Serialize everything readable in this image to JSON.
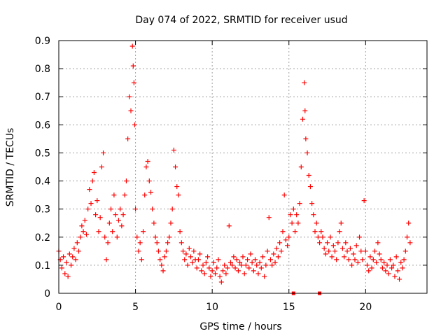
{
  "chart_data": {
    "type": "scatter",
    "title": "Day 074 of 2022, SRMTID for receiver usud",
    "xlabel": "GPS time / hours",
    "ylabel": "SRMTID / TECUs",
    "xlim": [
      0,
      24
    ],
    "ylim": [
      0,
      0.9
    ],
    "x_ticks": [
      0,
      5,
      10,
      15,
      20
    ],
    "x_tick_labels": [
      "0",
      "5",
      "10",
      "15",
      "20"
    ],
    "y_ticks": [
      0,
      0.1,
      0.2,
      0.3,
      0.4,
      0.5,
      0.6,
      0.7,
      0.8,
      0.9
    ],
    "y_tick_labels": [
      "0",
      "0.1",
      "0.2",
      "0.3",
      "0.4",
      "0.5",
      "0.6",
      "0.7",
      "0.8",
      "0.9"
    ],
    "grid": true,
    "marker": "+",
    "color": "#ff0000",
    "series": [
      {
        "name": "SRMTID",
        "points": [
          [
            0.0,
            0.15
          ],
          [
            0.1,
            0.12
          ],
          [
            0.2,
            0.09
          ],
          [
            0.3,
            0.13
          ],
          [
            0.4,
            0.07
          ],
          [
            0.5,
            0.11
          ],
          [
            0.6,
            0.06
          ],
          [
            0.7,
            0.14
          ],
          [
            0.8,
            0.1
          ],
          [
            0.9,
            0.13
          ],
          [
            1.0,
            0.16
          ],
          [
            1.1,
            0.12
          ],
          [
            1.2,
            0.18
          ],
          [
            1.3,
            0.15
          ],
          [
            1.4,
            0.2
          ],
          [
            1.5,
            0.24
          ],
          [
            1.6,
            0.22
          ],
          [
            1.7,
            0.26
          ],
          [
            1.8,
            0.21
          ],
          [
            1.9,
            0.3
          ],
          [
            2.0,
            0.37
          ],
          [
            2.1,
            0.32
          ],
          [
            2.2,
            0.4
          ],
          [
            2.3,
            0.43
          ],
          [
            2.4,
            0.28
          ],
          [
            2.5,
            0.33
          ],
          [
            2.6,
            0.22
          ],
          [
            2.7,
            0.27
          ],
          [
            2.8,
            0.45
          ],
          [
            2.9,
            0.5
          ],
          [
            3.0,
            0.2
          ],
          [
            3.1,
            0.12
          ],
          [
            3.2,
            0.18
          ],
          [
            3.3,
            0.25
          ],
          [
            3.4,
            0.3
          ],
          [
            3.5,
            0.22
          ],
          [
            3.6,
            0.35
          ],
          [
            3.7,
            0.28
          ],
          [
            3.8,
            0.2
          ],
          [
            3.9,
            0.26
          ],
          [
            4.0,
            0.3
          ],
          [
            4.1,
            0.24
          ],
          [
            4.2,
            0.28
          ],
          [
            4.3,
            0.35
          ],
          [
            4.4,
            0.4
          ],
          [
            4.5,
            0.55
          ],
          [
            4.6,
            0.7
          ],
          [
            4.7,
            0.65
          ],
          [
            4.8,
            0.88
          ],
          [
            4.85,
            0.81
          ],
          [
            4.9,
            0.75
          ],
          [
            4.95,
            0.6
          ],
          [
            5.0,
            0.3
          ],
          [
            5.1,
            0.2
          ],
          [
            5.2,
            0.15
          ],
          [
            5.3,
            0.18
          ],
          [
            5.4,
            0.12
          ],
          [
            5.5,
            0.22
          ],
          [
            5.6,
            0.35
          ],
          [
            5.7,
            0.45
          ],
          [
            5.8,
            0.47
          ],
          [
            5.9,
            0.4
          ],
          [
            6.0,
            0.36
          ],
          [
            6.1,
            0.3
          ],
          [
            6.2,
            0.25
          ],
          [
            6.3,
            0.2
          ],
          [
            6.4,
            0.18
          ],
          [
            6.5,
            0.15
          ],
          [
            6.6,
            0.12
          ],
          [
            6.7,
            0.1
          ],
          [
            6.8,
            0.08
          ],
          [
            6.9,
            0.13
          ],
          [
            7.0,
            0.15
          ],
          [
            7.1,
            0.18
          ],
          [
            7.2,
            0.2
          ],
          [
            7.3,
            0.25
          ],
          [
            7.4,
            0.3
          ],
          [
            7.5,
            0.51
          ],
          [
            7.6,
            0.45
          ],
          [
            7.7,
            0.38
          ],
          [
            7.8,
            0.35
          ],
          [
            7.9,
            0.22
          ],
          [
            8.0,
            0.18
          ],
          [
            8.1,
            0.15
          ],
          [
            8.2,
            0.12
          ],
          [
            8.3,
            0.14
          ],
          [
            8.4,
            0.1
          ],
          [
            8.5,
            0.16
          ],
          [
            8.6,
            0.13
          ],
          [
            8.7,
            0.11
          ],
          [
            8.8,
            0.15
          ],
          [
            8.9,
            0.12
          ],
          [
            9.0,
            0.09
          ],
          [
            9.1,
            0.12
          ],
          [
            9.2,
            0.14
          ],
          [
            9.3,
            0.08
          ],
          [
            9.4,
            0.1
          ],
          [
            9.5,
            0.07
          ],
          [
            9.6,
            0.11
          ],
          [
            9.7,
            0.13
          ],
          [
            9.8,
            0.09
          ],
          [
            9.9,
            0.06
          ],
          [
            10.0,
            0.08
          ],
          [
            10.1,
            0.11
          ],
          [
            10.2,
            0.07
          ],
          [
            10.3,
            0.09
          ],
          [
            10.4,
            0.12
          ],
          [
            10.5,
            0.06
          ],
          [
            10.6,
            0.04
          ],
          [
            10.7,
            0.08
          ],
          [
            10.8,
            0.1
          ],
          [
            10.9,
            0.07
          ],
          [
            11.0,
            0.09
          ],
          [
            11.1,
            0.24
          ],
          [
            11.2,
            0.11
          ],
          [
            11.3,
            0.1
          ],
          [
            11.4,
            0.13
          ],
          [
            11.5,
            0.09
          ],
          [
            11.6,
            0.12
          ],
          [
            11.7,
            0.08
          ],
          [
            11.8,
            0.11
          ],
          [
            11.9,
            0.1
          ],
          [
            12.0,
            0.13
          ],
          [
            12.1,
            0.07
          ],
          [
            12.2,
            0.1
          ],
          [
            12.3,
            0.12
          ],
          [
            12.4,
            0.09
          ],
          [
            12.5,
            0.14
          ],
          [
            12.6,
            0.11
          ],
          [
            12.7,
            0.08
          ],
          [
            12.8,
            0.12
          ],
          [
            12.9,
            0.1
          ],
          [
            13.0,
            0.07
          ],
          [
            13.1,
            0.11
          ],
          [
            13.2,
            0.09
          ],
          [
            13.3,
            0.13
          ],
          [
            13.4,
            0.06
          ],
          [
            13.5,
            0.1
          ],
          [
            13.6,
            0.15
          ],
          [
            13.7,
            0.27
          ],
          [
            13.8,
            0.12
          ],
          [
            13.9,
            0.1
          ],
          [
            14.0,
            0.14
          ],
          [
            14.1,
            0.11
          ],
          [
            14.2,
            0.16
          ],
          [
            14.3,
            0.13
          ],
          [
            14.4,
            0.18
          ],
          [
            14.5,
            0.15
          ],
          [
            14.6,
            0.22
          ],
          [
            14.7,
            0.35
          ],
          [
            14.8,
            0.19
          ],
          [
            14.9,
            0.17
          ],
          [
            15.0,
            0.2
          ],
          [
            15.1,
            0.28
          ],
          [
            15.2,
            0.25
          ],
          [
            15.3,
            0.3
          ],
          [
            15.4,
            0.22
          ],
          [
            15.5,
            0.28
          ],
          [
            15.6,
            0.25
          ],
          [
            15.7,
            0.32
          ],
          [
            15.8,
            0.45
          ],
          [
            15.9,
            0.62
          ],
          [
            16.0,
            0.75
          ],
          [
            16.05,
            0.65
          ],
          [
            16.1,
            0.55
          ],
          [
            16.2,
            0.5
          ],
          [
            16.3,
            0.42
          ],
          [
            16.4,
            0.38
          ],
          [
            16.5,
            0.32
          ],
          [
            16.6,
            0.28
          ],
          [
            16.7,
            0.22
          ],
          [
            16.8,
            0.25
          ],
          [
            16.9,
            0.2
          ],
          [
            17.0,
            0.18
          ],
          [
            17.1,
            0.22
          ],
          [
            17.2,
            0.2
          ],
          [
            17.3,
            0.16
          ],
          [
            17.4,
            0.14
          ],
          [
            17.5,
            0.18
          ],
          [
            17.6,
            0.15
          ],
          [
            17.7,
            0.2
          ],
          [
            17.8,
            0.13
          ],
          [
            17.9,
            0.17
          ],
          [
            18.0,
            0.15
          ],
          [
            18.1,
            0.12
          ],
          [
            18.2,
            0.18
          ],
          [
            18.3,
            0.22
          ],
          [
            18.4,
            0.25
          ],
          [
            18.5,
            0.16
          ],
          [
            18.6,
            0.13
          ],
          [
            18.7,
            0.18
          ],
          [
            18.8,
            0.15
          ],
          [
            18.9,
            0.12
          ],
          [
            19.0,
            0.16
          ],
          [
            19.1,
            0.1
          ],
          [
            19.2,
            0.14
          ],
          [
            19.3,
            0.12
          ],
          [
            19.4,
            0.17
          ],
          [
            19.5,
            0.11
          ],
          [
            19.6,
            0.2
          ],
          [
            19.7,
            0.15
          ],
          [
            19.8,
            0.12
          ],
          [
            19.9,
            0.33
          ],
          [
            20.0,
            0.15
          ],
          [
            20.1,
            0.1
          ],
          [
            20.2,
            0.08
          ],
          [
            20.3,
            0.13
          ],
          [
            20.4,
            0.09
          ],
          [
            20.5,
            0.12
          ],
          [
            20.6,
            0.15
          ],
          [
            20.7,
            0.11
          ],
          [
            20.8,
            0.18
          ],
          [
            20.9,
            0.14
          ],
          [
            21.0,
            0.12
          ],
          [
            21.1,
            0.09
          ],
          [
            21.2,
            0.11
          ],
          [
            21.3,
            0.08
          ],
          [
            21.4,
            0.1
          ],
          [
            21.5,
            0.07
          ],
          [
            21.6,
            0.12
          ],
          [
            21.7,
            0.09
          ],
          [
            21.8,
            0.1
          ],
          [
            21.9,
            0.06
          ],
          [
            22.0,
            0.13
          ],
          [
            22.1,
            0.08
          ],
          [
            22.2,
            0.05
          ],
          [
            22.3,
            0.11
          ],
          [
            22.4,
            0.09
          ],
          [
            22.5,
            0.12
          ],
          [
            22.6,
            0.15
          ],
          [
            22.7,
            0.2
          ],
          [
            22.8,
            0.25
          ],
          [
            22.9,
            0.18
          ]
        ]
      }
    ],
    "zero_markers": [
      15.3,
      17.0
    ]
  }
}
